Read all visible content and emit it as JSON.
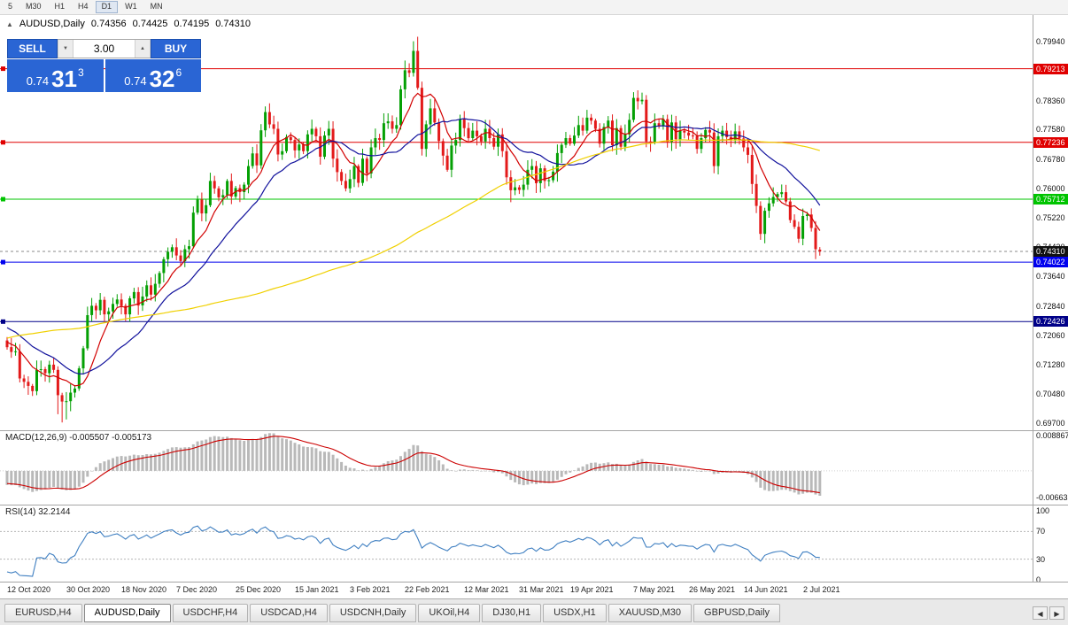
{
  "window": {
    "timeframes": [
      "5",
      "M30",
      "H1",
      "H4",
      "D1",
      "W1",
      "MN"
    ],
    "active_timeframe": "D1"
  },
  "chart_header": {
    "symbol": "AUDUSD,Daily",
    "open": "0.74356",
    "high": "0.74425",
    "low": "0.74195",
    "close": "0.74310"
  },
  "trade_panel": {
    "sell_label": "SELL",
    "buy_label": "BUY",
    "lot_size": "3.00",
    "bid": {
      "base": "0.74",
      "big": "31",
      "sup": "3"
    },
    "ask": {
      "base": "0.74",
      "big": "32",
      "sup": "6"
    }
  },
  "colors": {
    "bull": "#04a004",
    "bear": "#e31a1a",
    "ma_fast": "#d20000",
    "ma_mid": "#11119c",
    "ma_slow": "#f0d000",
    "macd_hist": "#b9b9b9",
    "macd_signal": "#cc0000",
    "rsi_line": "#3f7fc1",
    "panel_blue": "#2a65d4",
    "current_tag": "#111111"
  },
  "price_axis": {
    "labels": [
      "0.79940",
      "0.78360",
      "0.77580",
      "0.76780",
      "0.76000",
      "0.75220",
      "0.74430",
      "0.73640",
      "0.72840",
      "0.72060",
      "0.71280",
      "0.70480",
      "0.69700"
    ]
  },
  "hlines": [
    {
      "value": 0.79213,
      "label": "0.79213",
      "color": "#e00000"
    },
    {
      "value": 0.77236,
      "label": "0.77236",
      "color": "#e00000"
    },
    {
      "value": 0.75712,
      "label": "0.75712",
      "color": "#00c400"
    },
    {
      "value": 0.74022,
      "label": "0.74022",
      "color": "#0000ee"
    },
    {
      "value": 0.72426,
      "label": "0.72426",
      "color": "#000088"
    }
  ],
  "current_price": {
    "value": 0.7431,
    "label": "0.74310"
  },
  "indicators": {
    "macd": {
      "title": "MACD(12,26,9) -0.005507 -0.005173",
      "axis_labels": [
        "0.008867",
        "-0.006632"
      ]
    },
    "rsi": {
      "title": "RSI(14) 32.2144",
      "axis_labels": [
        "100",
        "70",
        "30",
        "0"
      ],
      "levels": [
        70,
        30
      ]
    }
  },
  "x_axis": {
    "labels": [
      {
        "text": "12 Oct 2020",
        "index": 0
      },
      {
        "text": "30 Oct 2020",
        "index": 14
      },
      {
        "text": "18 Nov 2020",
        "index": 27
      },
      {
        "text": "7 Dec 2020",
        "index": 40
      },
      {
        "text": "25 Dec 2020",
        "index": 54
      },
      {
        "text": "15 Jan 2021",
        "index": 68
      },
      {
        "text": "3 Feb 2021",
        "index": 81
      },
      {
        "text": "22 Feb 2021",
        "index": 94
      },
      {
        "text": "12 Mar 2021",
        "index": 108
      },
      {
        "text": "31 Mar 2021",
        "index": 121
      },
      {
        "text": "19 Apr 2021",
        "index": 133
      },
      {
        "text": "7 May 2021",
        "index": 148
      },
      {
        "text": "26 May 2021",
        "index": 161
      },
      {
        "text": "14 Jun 2021",
        "index": 174
      },
      {
        "text": "2 Jul 2021",
        "index": 188
      }
    ]
  },
  "tabs": {
    "active": "AUDUSD,Daily",
    "items": [
      "EURUSD,H4",
      "AUDUSD,Daily",
      "USDCHF,H4",
      "USDCAD,H4",
      "USDCNH,Daily",
      "UKOil,H4",
      "DJ30,H1",
      "USDX,H1",
      "XAUUSD,M30",
      "GBPUSD,Daily"
    ]
  },
  "chart_data": {
    "type": "candlestick",
    "symbol": "AUDUSD",
    "timeframe": "Daily",
    "price_range": [
      0.697,
      0.8007
    ],
    "first_open": 0.7192,
    "closes": [
      0.7174,
      0.7161,
      0.7163,
      0.709,
      0.7081,
      0.707,
      0.7056,
      0.7113,
      0.7115,
      0.7104,
      0.7127,
      0.7113,
      0.7045,
      0.7028,
      0.7029,
      0.7052,
      0.7063,
      0.7117,
      0.7171,
      0.726,
      0.7285,
      0.7273,
      0.7301,
      0.7262,
      0.727,
      0.729,
      0.7302,
      0.7285,
      0.7262,
      0.7305,
      0.7322,
      0.7286,
      0.731,
      0.734,
      0.7315,
      0.7344,
      0.7373,
      0.741,
      0.743,
      0.7442,
      0.742,
      0.7405,
      0.7437,
      0.7445,
      0.7535,
      0.757,
      0.7533,
      0.7555,
      0.762,
      0.76,
      0.7576,
      0.7582,
      0.762,
      0.7578,
      0.7601,
      0.759,
      0.761,
      0.766,
      0.7694,
      0.7662,
      0.7756,
      0.7805,
      0.7772,
      0.776,
      0.7691,
      0.77,
      0.7738,
      0.773,
      0.7702,
      0.7718,
      0.77,
      0.7745,
      0.776,
      0.774,
      0.7685,
      0.7742,
      0.776,
      0.768,
      0.7644,
      0.762,
      0.76,
      0.7625,
      0.766,
      0.7615,
      0.768,
      0.764,
      0.771,
      0.7735,
      0.773,
      0.7775,
      0.778,
      0.776,
      0.777,
      0.7866,
      0.7917,
      0.791,
      0.7969,
      0.787,
      0.7706,
      0.7772,
      0.7815,
      0.7777,
      0.7727,
      0.7688,
      0.765,
      0.7715,
      0.773,
      0.7786,
      0.7762,
      0.7735,
      0.7755,
      0.774,
      0.7726,
      0.776,
      0.7735,
      0.7712,
      0.7745,
      0.77,
      0.763,
      0.7595,
      0.7603,
      0.7596,
      0.761,
      0.765,
      0.766,
      0.7614,
      0.7654,
      0.762,
      0.7622,
      0.7645,
      0.7695,
      0.7717,
      0.7735,
      0.772,
      0.7742,
      0.777,
      0.7755,
      0.779,
      0.7782,
      0.776,
      0.772,
      0.7765,
      0.7782,
      0.7716,
      0.7762,
      0.7712,
      0.7745,
      0.7784,
      0.7843,
      0.7834,
      0.7838,
      0.7726,
      0.7725,
      0.7775,
      0.7767,
      0.7786,
      0.7725,
      0.7777,
      0.7732,
      0.7755,
      0.775,
      0.7742,
      0.774,
      0.7706,
      0.7735,
      0.7757,
      0.775,
      0.766,
      0.774,
      0.7755,
      0.7738,
      0.773,
      0.7753,
      0.7734,
      0.771,
      0.769,
      0.7612,
      0.7553,
      0.7478,
      0.754,
      0.756,
      0.7577,
      0.7585,
      0.759,
      0.7565,
      0.7515,
      0.7497,
      0.7465,
      0.7526,
      0.753,
      0.7494,
      0.7437,
      0.7431
    ],
    "extremes": {
      "12": {
        "low": 0.6994
      },
      "13": {
        "low": 0.6972
      },
      "14": {
        "low": 0.698
      },
      "61": {
        "high": 0.782
      },
      "80": {
        "low": 0.7592
      },
      "96": {
        "high": 0.7995
      },
      "97": {
        "high": 0.8007
      },
      "119": {
        "low": 0.7563
      },
      "178": {
        "low": 0.7462
      }
    },
    "last_candle": {
      "open": 0.74356,
      "high": 0.74425,
      "low": 0.74195,
      "close": 0.7431
    },
    "moving_averages": [
      {
        "period": 8,
        "color_key": "ma_fast"
      },
      {
        "period": 20,
        "color_key": "ma_mid"
      },
      {
        "period": 100,
        "color_key": "ma_slow"
      }
    ],
    "ma_prehistory_anchors": [
      0.688,
      0.7,
      0.724,
      0.742,
      0.73,
      0.717
    ],
    "macd": {
      "fast": 12,
      "slow": 26,
      "signal": 9,
      "current": -0.005507,
      "current_signal": -0.005173,
      "scale_max": 0.01,
      "scale_min": -0.0085
    },
    "rsi": {
      "period": 14,
      "current": 32.2144
    }
  }
}
